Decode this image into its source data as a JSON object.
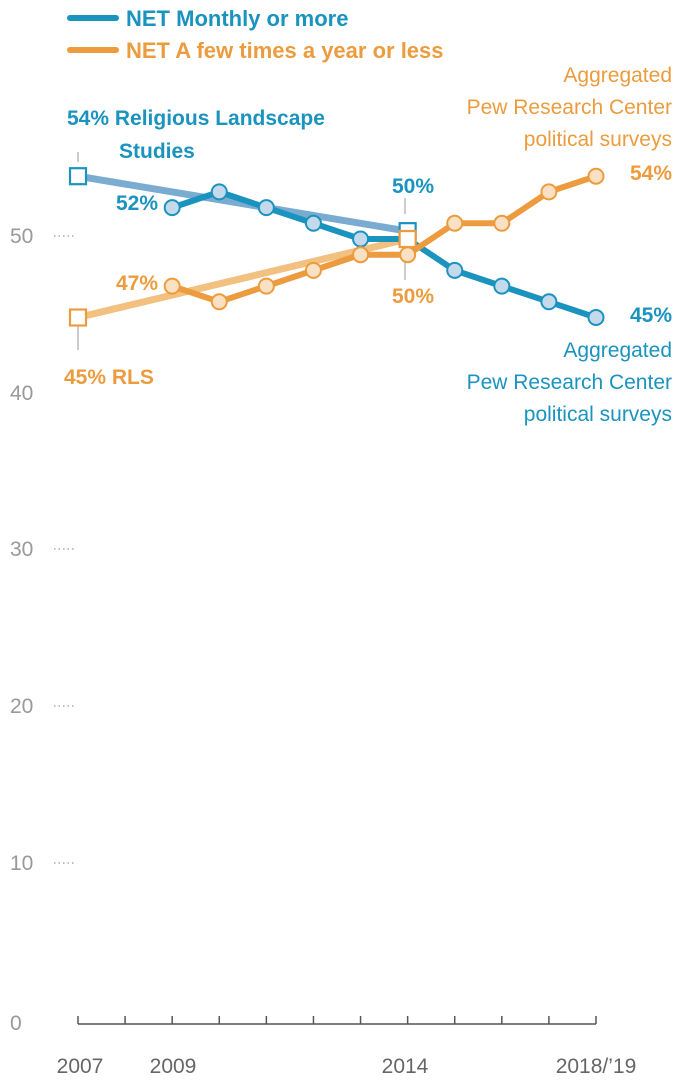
{
  "colors": {
    "blue": "#1b93bf",
    "blue_light": "#7aabd0",
    "orange": "#ec9c3e",
    "orange_light": "#f2c07f",
    "dot_fill_blue": "#c5d9ec",
    "dot_fill_orange": "#fbe1c3"
  },
  "chart_data": {
    "type": "line",
    "x_tick_labels": [
      "2007",
      "2009",
      "2014",
      "2018/’19"
    ],
    "y_tick_labels": [
      "0",
      "10",
      "20",
      "30",
      "40",
      "50"
    ],
    "ylim": [
      0,
      55
    ],
    "grid": false,
    "legend_position": "top-left",
    "series": [
      {
        "name": "NET Monthly or more",
        "color": "#1b93bf",
        "rls": [
          [
            2007,
            54
          ],
          [
            2014,
            50.5
          ]
        ],
        "pew": [
          [
            2009,
            52
          ],
          [
            2010,
            53
          ],
          [
            2011,
            52
          ],
          [
            2012,
            51
          ],
          [
            2013,
            50
          ],
          [
            2014,
            50
          ],
          [
            2015,
            48
          ],
          [
            2016,
            47
          ],
          [
            2017,
            46
          ],
          [
            2018,
            45
          ]
        ]
      },
      {
        "name": "NET A few times a year or less",
        "color": "#ec9c3e",
        "rls": [
          [
            2007,
            45
          ],
          [
            2014,
            50
          ]
        ],
        "pew": [
          [
            2009,
            47
          ],
          [
            2010,
            46
          ],
          [
            2011,
            47
          ],
          [
            2012,
            48
          ],
          [
            2013,
            49
          ],
          [
            2014,
            49
          ],
          [
            2015,
            51
          ],
          [
            2016,
            51
          ],
          [
            2017,
            53
          ],
          [
            2018,
            54
          ]
        ]
      }
    ],
    "annotations": {
      "blue_rls_start": "54% Religious Landscape",
      "blue_rls_start_2": "Studies",
      "blue_pew_first": "52%",
      "blue_rls_end": "50%",
      "blue_pew_last": "45%",
      "blue_source_1": "Aggregated",
      "blue_source_2": "Pew Research Center",
      "blue_source_3": "political surveys",
      "orange_rls_start": "45% RLS",
      "orange_pew_first": "47%",
      "orange_rls_end": "50%",
      "orange_pew_last": "54%",
      "orange_source_1": "Aggregated",
      "orange_source_2": "Pew Research Center",
      "orange_source_3": "political surveys"
    }
  }
}
